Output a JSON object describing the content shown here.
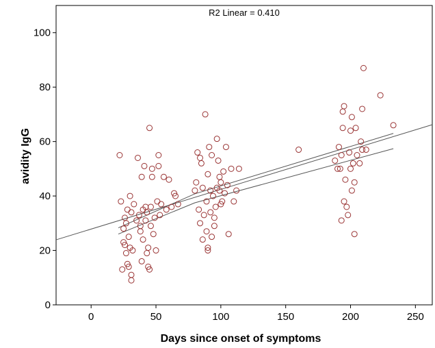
{
  "chart_data": {
    "type": "scatter",
    "title": "",
    "xlabel": "Days since onset of symptoms",
    "ylabel": "avidity IgG",
    "annotation": "R2 Linear = 0.410",
    "xlim": [
      -27,
      263
    ],
    "ylim": [
      0,
      110
    ],
    "x_ticks": [
      0,
      50,
      100,
      150,
      200,
      250
    ],
    "y_ticks": [
      0,
      20,
      40,
      60,
      80,
      100
    ],
    "grid": false,
    "colors": {
      "marker": "#993333",
      "line": "#555555",
      "axis": "#000000"
    },
    "fit_line": {
      "x0": -27,
      "y0": 23.9,
      "x1": 263,
      "y1": 66.2
    },
    "confidence_band": {
      "upper": [
        [
          21,
          28.3
        ],
        [
          80,
          40.8
        ],
        [
          233,
          63.0
        ]
      ],
      "lower": [
        [
          21,
          26.0
        ],
        [
          80,
          37.5
        ],
        [
          233,
          57.4
        ]
      ]
    },
    "points": [
      [
        22,
        55
      ],
      [
        23,
        38
      ],
      [
        24,
        13
      ],
      [
        25,
        23
      ],
      [
        25,
        28
      ],
      [
        26,
        22
      ],
      [
        26,
        32
      ],
      [
        27,
        30
      ],
      [
        27,
        19
      ],
      [
        28,
        15
      ],
      [
        28,
        35
      ],
      [
        29,
        14
      ],
      [
        29,
        25
      ],
      [
        30,
        40
      ],
      [
        30,
        21
      ],
      [
        31,
        34
      ],
      [
        31,
        11
      ],
      [
        31,
        9
      ],
      [
        32,
        20
      ],
      [
        33,
        37
      ],
      [
        35,
        31
      ],
      [
        36,
        54
      ],
      [
        37,
        33
      ],
      [
        38,
        29
      ],
      [
        38,
        27
      ],
      [
        39,
        47
      ],
      [
        39,
        16
      ],
      [
        40,
        35
      ],
      [
        40,
        24
      ],
      [
        41,
        51
      ],
      [
        42,
        36
      ],
      [
        42,
        31
      ],
      [
        43,
        34
      ],
      [
        43,
        19
      ],
      [
        44,
        21
      ],
      [
        44,
        14
      ],
      [
        45,
        13
      ],
      [
        45,
        65
      ],
      [
        46,
        29
      ],
      [
        46,
        36
      ],
      [
        47,
        50
      ],
      [
        47,
        47
      ],
      [
        48,
        26
      ],
      [
        49,
        32
      ],
      [
        50,
        20
      ],
      [
        51,
        38
      ],
      [
        52,
        55
      ],
      [
        52,
        51
      ],
      [
        53,
        33
      ],
      [
        54,
        37
      ],
      [
        56,
        47
      ],
      [
        58,
        35
      ],
      [
        60,
        46
      ],
      [
        62,
        36
      ],
      [
        64,
        41
      ],
      [
        65,
        40
      ],
      [
        67,
        37
      ],
      [
        80,
        42
      ],
      [
        81,
        45
      ],
      [
        82,
        56
      ],
      [
        83,
        35
      ],
      [
        84,
        30
      ],
      [
        84,
        54
      ],
      [
        85,
        52
      ],
      [
        86,
        43
      ],
      [
        86,
        24
      ],
      [
        87,
        33
      ],
      [
        88,
        70
      ],
      [
        89,
        38
      ],
      [
        89,
        27
      ],
      [
        90,
        48
      ],
      [
        90,
        21
      ],
      [
        90,
        20
      ],
      [
        91,
        58
      ],
      [
        92,
        42
      ],
      [
        92,
        34
      ],
      [
        93,
        55
      ],
      [
        93,
        25
      ],
      [
        94,
        40
      ],
      [
        95,
        32
      ],
      [
        95,
        29
      ],
      [
        96,
        36
      ],
      [
        97,
        61
      ],
      [
        97,
        43
      ],
      [
        98,
        53
      ],
      [
        99,
        47
      ],
      [
        99,
        42
      ],
      [
        100,
        37
      ],
      [
        100,
        45
      ],
      [
        101,
        38
      ],
      [
        102,
        49
      ],
      [
        103,
        41
      ],
      [
        104,
        58
      ],
      [
        105,
        44
      ],
      [
        106,
        26
      ],
      [
        108,
        50
      ],
      [
        110,
        38
      ],
      [
        112,
        42
      ],
      [
        114,
        50
      ],
      [
        160,
        57
      ],
      [
        188,
        53
      ],
      [
        190,
        50
      ],
      [
        191,
        58
      ],
      [
        192,
        50
      ],
      [
        193,
        31
      ],
      [
        193,
        55
      ],
      [
        194,
        65
      ],
      [
        194,
        71
      ],
      [
        195,
        73
      ],
      [
        195,
        38
      ],
      [
        196,
        46
      ],
      [
        197,
        36
      ],
      [
        198,
        33
      ],
      [
        199,
        56
      ],
      [
        200,
        64
      ],
      [
        200,
        50
      ],
      [
        201,
        69
      ],
      [
        201,
        42
      ],
      [
        202,
        52
      ],
      [
        203,
        45
      ],
      [
        203,
        26
      ],
      [
        204,
        65
      ],
      [
        205,
        55
      ],
      [
        207,
        52
      ],
      [
        208,
        60
      ],
      [
        209,
        72
      ],
      [
        209,
        57
      ],
      [
        210,
        87
      ],
      [
        212,
        57
      ],
      [
        223,
        77
      ],
      [
        233,
        66
      ]
    ]
  }
}
